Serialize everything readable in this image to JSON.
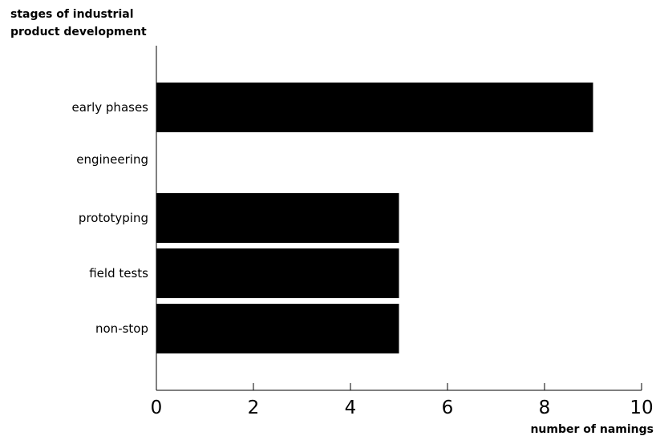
{
  "chart_data": {
    "type": "bar",
    "orientation": "horizontal",
    "ylabel_lines": [
      "stages of industrial",
      "product development"
    ],
    "xlabel": "number of namings",
    "categories": [
      "early phases",
      "engineering",
      "prototyping",
      "field tests",
      "non-stop"
    ],
    "values": [
      9,
      0,
      5,
      5,
      5
    ],
    "xlim": [
      0,
      10
    ],
    "xticks": [
      0,
      2,
      4,
      6,
      8,
      10
    ],
    "grid": false,
    "bar_color": "#000000"
  }
}
